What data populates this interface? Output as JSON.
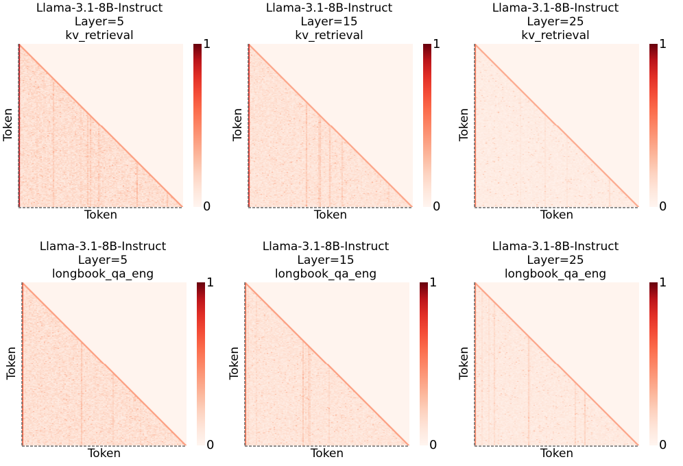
{
  "chart_data": [
    {
      "type": "heatmap",
      "title_lines": [
        "Llama-3.1-8B-Instruct",
        "Layer=5",
        "kv_retrieval"
      ],
      "xlabel": "Token",
      "ylabel": "Token",
      "colorbar": {
        "min_label": "0",
        "max_label": "1",
        "colormap": "Reds",
        "range": [
          0,
          1
        ]
      },
      "intensity": 0.18,
      "diagonal": 0.42,
      "first_column": 0.9,
      "triangle": "lower"
    },
    {
      "type": "heatmap",
      "title_lines": [
        "Llama-3.1-8B-Instruct",
        "Layer=15",
        "kv_retrieval"
      ],
      "xlabel": "Token",
      "ylabel": "Token",
      "colorbar": {
        "min_label": "0",
        "max_label": "1",
        "colormap": "Reds",
        "range": [
          0,
          1
        ]
      },
      "intensity": 0.15,
      "diagonal": 0.4,
      "first_column": 0.8,
      "triangle": "lower"
    },
    {
      "type": "heatmap",
      "title_lines": [
        "Llama-3.1-8B-Instruct",
        "Layer=25",
        "kv_retrieval"
      ],
      "xlabel": "Token",
      "ylabel": "Token",
      "colorbar": {
        "min_label": "0",
        "max_label": "1",
        "colormap": "Reds",
        "range": [
          0,
          1
        ]
      },
      "intensity": 0.08,
      "diagonal": 0.38,
      "first_column": 0.55,
      "triangle": "lower"
    },
    {
      "type": "heatmap",
      "title_lines": [
        "Llama-3.1-8B-Instruct",
        "Layer=5",
        "longbook_qa_eng"
      ],
      "xlabel": "Token",
      "ylabel": "Token",
      "colorbar": {
        "min_label": "0",
        "max_label": "1",
        "colormap": "Reds",
        "range": [
          0,
          1
        ]
      },
      "intensity": 0.17,
      "diagonal": 0.42,
      "first_column": 0.6,
      "triangle": "lower"
    },
    {
      "type": "heatmap",
      "title_lines": [
        "Llama-3.1-8B-Instruct",
        "Layer=15",
        "longbook_qa_eng"
      ],
      "xlabel": "Token",
      "ylabel": "Token",
      "colorbar": {
        "min_label": "0",
        "max_label": "1",
        "colormap": "Reds",
        "range": [
          0,
          1
        ]
      },
      "intensity": 0.14,
      "diagonal": 0.42,
      "first_column": 0.55,
      "triangle": "lower"
    },
    {
      "type": "heatmap",
      "title_lines": [
        "Llama-3.1-8B-Instruct",
        "Layer=25",
        "longbook_qa_eng"
      ],
      "xlabel": "Token",
      "ylabel": "Token",
      "colorbar": {
        "min_label": "0",
        "max_label": "1",
        "colormap": "Reds",
        "range": [
          0,
          1
        ]
      },
      "intensity": 0.1,
      "diagonal": 0.4,
      "first_column": 0.5,
      "triangle": "lower"
    }
  ]
}
